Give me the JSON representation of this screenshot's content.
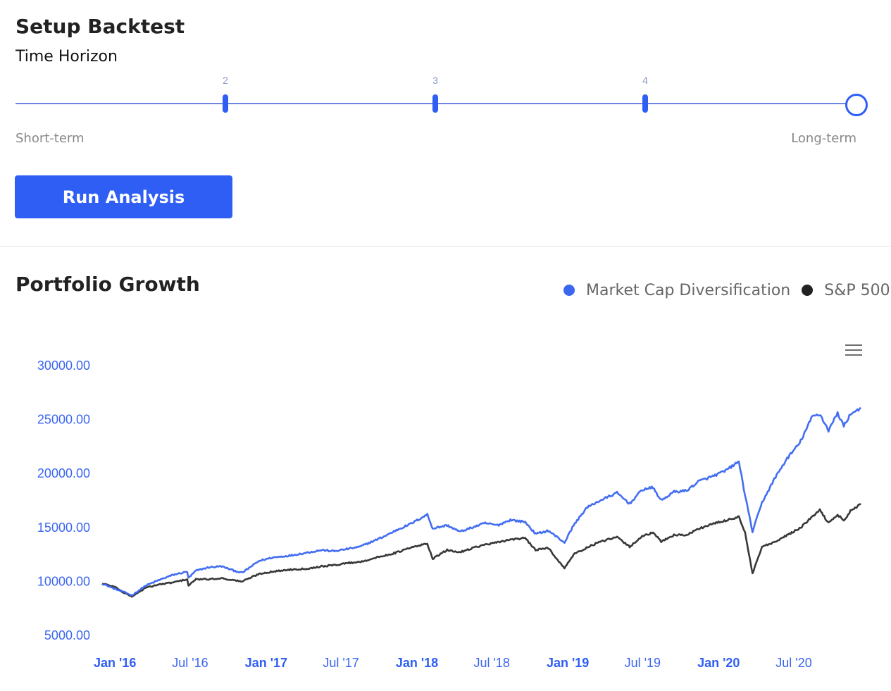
{
  "setup": {
    "title": "Setup Backtest",
    "horizon_label": "Time Horizon",
    "slider": {
      "tick_labels": [
        "2",
        "3",
        "4"
      ],
      "min_label": "Short-term",
      "max_label": "Long-term",
      "steps": 5,
      "selected_step": 5,
      "accent_color": "#2f5ef5"
    },
    "run_button_label": "Run Analysis"
  },
  "chart": {
    "title": "Portfolio Growth",
    "menu_icon": "hamburger-menu-icon",
    "legend": [
      {
        "label": "Market Cap Diversification",
        "color": "#3a66f0"
      },
      {
        "label": "S&P 500",
        "color": "#222222"
      }
    ]
  },
  "chart_data": {
    "type": "line",
    "title": "Portfolio Growth",
    "xlabel": "",
    "ylabel": "",
    "ylim": [
      5000,
      30000
    ],
    "xlim": [
      "2015-12-01",
      "2020-12-15"
    ],
    "y_ticks": [
      "5000.00",
      "10000.00",
      "15000.00",
      "20000.00",
      "25000.00",
      "30000.00"
    ],
    "x_ticks": [
      {
        "label": "Jan '16",
        "date": "2016-01-01",
        "major": true
      },
      {
        "label": "Jul '16",
        "date": "2016-07-01",
        "major": false
      },
      {
        "label": "Jan '17",
        "date": "2017-01-01",
        "major": true
      },
      {
        "label": "Jul '17",
        "date": "2017-07-01",
        "major": false
      },
      {
        "label": "Jan '18",
        "date": "2018-01-01",
        "major": true
      },
      {
        "label": "Jul '18",
        "date": "2018-07-01",
        "major": false
      },
      {
        "label": "Jan '19",
        "date": "2019-01-01",
        "major": true
      },
      {
        "label": "Jul '19",
        "date": "2019-07-01",
        "major": false
      },
      {
        "label": "Jan '20",
        "date": "2020-01-01",
        "major": true
      },
      {
        "label": "Jul '20",
        "date": "2020-07-01",
        "major": false
      }
    ],
    "grid": false,
    "legend_position": "top-right",
    "x": [
      "2015-12-01",
      "2016-01-01",
      "2016-01-20",
      "2016-02-11",
      "2016-03-15",
      "2016-04-15",
      "2016-05-20",
      "2016-06-24",
      "2016-06-27",
      "2016-07-15",
      "2016-08-15",
      "2016-09-15",
      "2016-10-15",
      "2016-11-04",
      "2016-12-15",
      "2017-01-15",
      "2017-03-01",
      "2017-04-15",
      "2017-05-15",
      "2017-06-15",
      "2017-07-15",
      "2017-08-15",
      "2017-09-15",
      "2017-10-15",
      "2017-11-15",
      "2017-12-15",
      "2018-01-26",
      "2018-02-08",
      "2018-03-15",
      "2018-04-15",
      "2018-05-15",
      "2018-06-15",
      "2018-07-15",
      "2018-08-15",
      "2018-09-20",
      "2018-10-15",
      "2018-11-15",
      "2018-12-24",
      "2019-01-15",
      "2019-02-15",
      "2019-03-15",
      "2019-04-30",
      "2019-05-31",
      "2019-06-30",
      "2019-07-26",
      "2019-08-15",
      "2019-09-15",
      "2019-10-15",
      "2019-11-15",
      "2019-12-15",
      "2020-01-15",
      "2020-02-19",
      "2020-03-05",
      "2020-03-23",
      "2020-04-15",
      "2020-05-15",
      "2020-06-15",
      "2020-07-15",
      "2020-08-15",
      "2020-09-02",
      "2020-09-23",
      "2020-10-15",
      "2020-10-30",
      "2020-11-15",
      "2020-12-10"
    ],
    "series": [
      {
        "name": "Market Cap Diversification",
        "color": "#3a66f0",
        "values": [
          9800,
          9300,
          9050,
          8700,
          9600,
          10100,
          10600,
          10900,
          10300,
          11000,
          11300,
          11400,
          11000,
          10800,
          11900,
          12200,
          12400,
          12700,
          12900,
          12800,
          13000,
          13200,
          13700,
          14200,
          14800,
          15300,
          16200,
          14900,
          15200,
          14600,
          15000,
          15400,
          15200,
          15700,
          15500,
          14400,
          14700,
          13600,
          15200,
          16800,
          17400,
          18200,
          17200,
          18500,
          18700,
          17500,
          18300,
          18400,
          19300,
          19700,
          20200,
          21100,
          18000,
          14600,
          17300,
          19500,
          21400,
          22800,
          25300,
          25500,
          24000,
          25600,
          24400,
          25500,
          26100
        ]
      },
      {
        "name": "S&P 500",
        "color": "#222222",
        "values": [
          9800,
          9500,
          9000,
          8600,
          9400,
          9700,
          9900,
          10200,
          9600,
          10200,
          10200,
          10300,
          10100,
          10000,
          10700,
          10900,
          11100,
          11200,
          11400,
          11500,
          11700,
          11800,
          12100,
          12400,
          12700,
          13100,
          13500,
          12100,
          12900,
          12700,
          13100,
          13400,
          13600,
          13900,
          14000,
          12900,
          13100,
          11200,
          12500,
          13100,
          13600,
          14100,
          13200,
          14200,
          14500,
          13700,
          14300,
          14300,
          14900,
          15300,
          15600,
          16000,
          14500,
          10700,
          13200,
          13600,
          14300,
          14900,
          16000,
          16600,
          15400,
          16200,
          15600,
          16500,
          17200
        ]
      }
    ]
  }
}
